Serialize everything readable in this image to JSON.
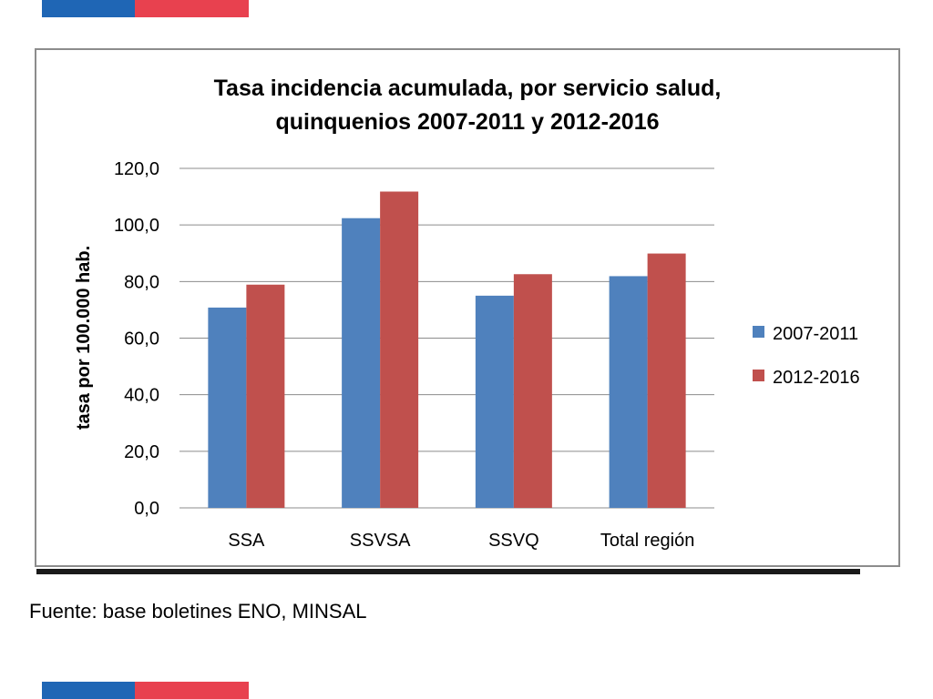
{
  "colors": {
    "flag_blue": "#1f66b5",
    "flag_red": "#e8414f",
    "series_1": "#4f81bd",
    "series_2": "#c0504d",
    "grid": "#8c8c8c"
  },
  "source": "Fuente: base boletines ENO, MINSAL",
  "chart_data": {
    "type": "bar",
    "title": "Tasa incidencia acumulada, por servicio salud,",
    "subtitle": "quinquenios 2007-2011 y 2012-2016",
    "xlabel": "",
    "ylabel": "tasa por 100.000 hab.",
    "ylim": [
      0,
      120
    ],
    "yticks": [
      "0,0",
      "20,0",
      "40,0",
      "60,0",
      "80,0",
      "100,0",
      "120,0"
    ],
    "categories": [
      "SSA",
      "SSVSA",
      "SSVQ",
      "Total región"
    ],
    "series": [
      {
        "name": "2007-2011",
        "values": [
          70.8,
          102.4,
          75.0,
          81.9
        ]
      },
      {
        "name": "2012-2016",
        "values": [
          78.9,
          111.8,
          82.6,
          89.9
        ]
      }
    ],
    "grid": true,
    "legend_position": "right"
  }
}
